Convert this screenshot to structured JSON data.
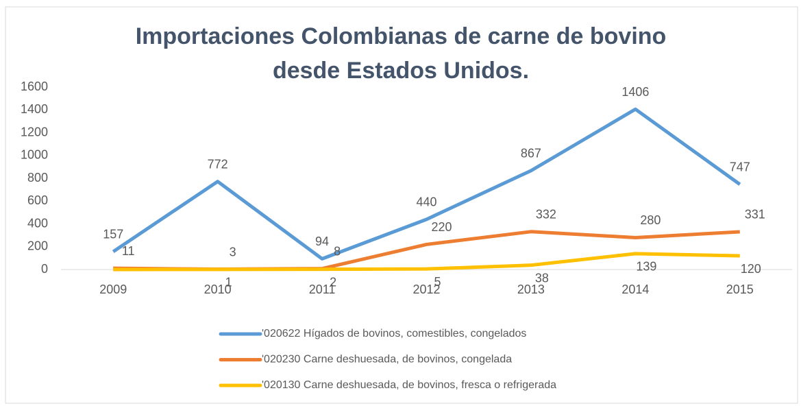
{
  "chart_data": {
    "type": "line",
    "title": [
      "Importaciones Colombianas de carne de bovino",
      "desde Estados Unidos."
    ],
    "categories": [
      "2009",
      "2010",
      "2011",
      "2012",
      "2013",
      "2014",
      "2015"
    ],
    "series": [
      {
        "name": "'020622 Hígados de bovinos, comestibles, congelados",
        "color": "#5b9bd5",
        "values": [
          157,
          772,
          94,
          440,
          867,
          1406,
          747
        ]
      },
      {
        "name": "'020230 Carne deshuesada, de bovinos, congelada",
        "color": "#ed7d31",
        "values": [
          11,
          3,
          8,
          220,
          332,
          280,
          331
        ]
      },
      {
        "name": "'020130 Carne deshuesada, de bovinos, fresca o refrigerada",
        "color": "#ffc000",
        "values": [
          0,
          1,
          2,
          5,
          38,
          139,
          120
        ],
        "value_labels": [
          null,
          "1",
          "2",
          "5",
          "38",
          "139",
          "120"
        ]
      }
    ],
    "ylim": [
      0,
      1600
    ],
    "yticks": [
      0,
      200,
      400,
      600,
      800,
      1000,
      1200,
      1400,
      1600
    ],
    "grid": false,
    "legend": "bottom"
  }
}
